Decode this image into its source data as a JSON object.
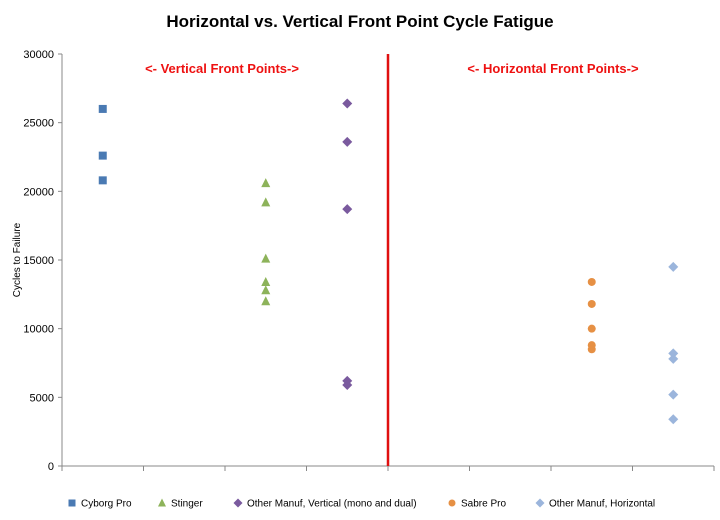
{
  "chart_data": {
    "type": "scatter",
    "title": "Horizontal vs. Vertical Front Point Cycle Fatigue",
    "ylabel": "Cycles to Failure",
    "xlabel": "",
    "ylim": [
      0,
      30000
    ],
    "yticks": [
      0,
      5000,
      10000,
      15000,
      20000,
      25000,
      30000
    ],
    "x_categories": [
      1,
      2,
      3,
      4,
      5,
      6,
      7,
      8
    ],
    "grid": false,
    "legend_position": "bottom",
    "annotations": [
      "<- Vertical Front Points->",
      "<- Horizontal Front Points->"
    ],
    "divider_x": 4.5,
    "series": [
      {
        "name": "Cyborg Pro",
        "marker": "square",
        "color": "#4a7ab3",
        "x": 1,
        "values": [
          26000,
          22600,
          20800
        ]
      },
      {
        "name": "Stinger",
        "marker": "triangle",
        "color": "#8db35a",
        "x": 3,
        "values": [
          20600,
          19200,
          15100,
          13400,
          12800,
          12000
        ]
      },
      {
        "name": "Other Manuf, Vertical (mono and dual)",
        "marker": "diamond",
        "color": "#7a5a9e",
        "x": 4,
        "values": [
          26400,
          23600,
          18700,
          6200,
          5900
        ]
      },
      {
        "name": "Sabre Pro",
        "marker": "circle",
        "color": "#e69044",
        "x": 7,
        "values": [
          13400,
          11800,
          10000,
          8800,
          8500
        ]
      },
      {
        "name": "Other Manuf, Horizontal",
        "marker": "diamond",
        "color": "#9bb5dc",
        "x": 8,
        "values": [
          14500,
          8200,
          7800,
          5200,
          3400
        ]
      }
    ]
  }
}
